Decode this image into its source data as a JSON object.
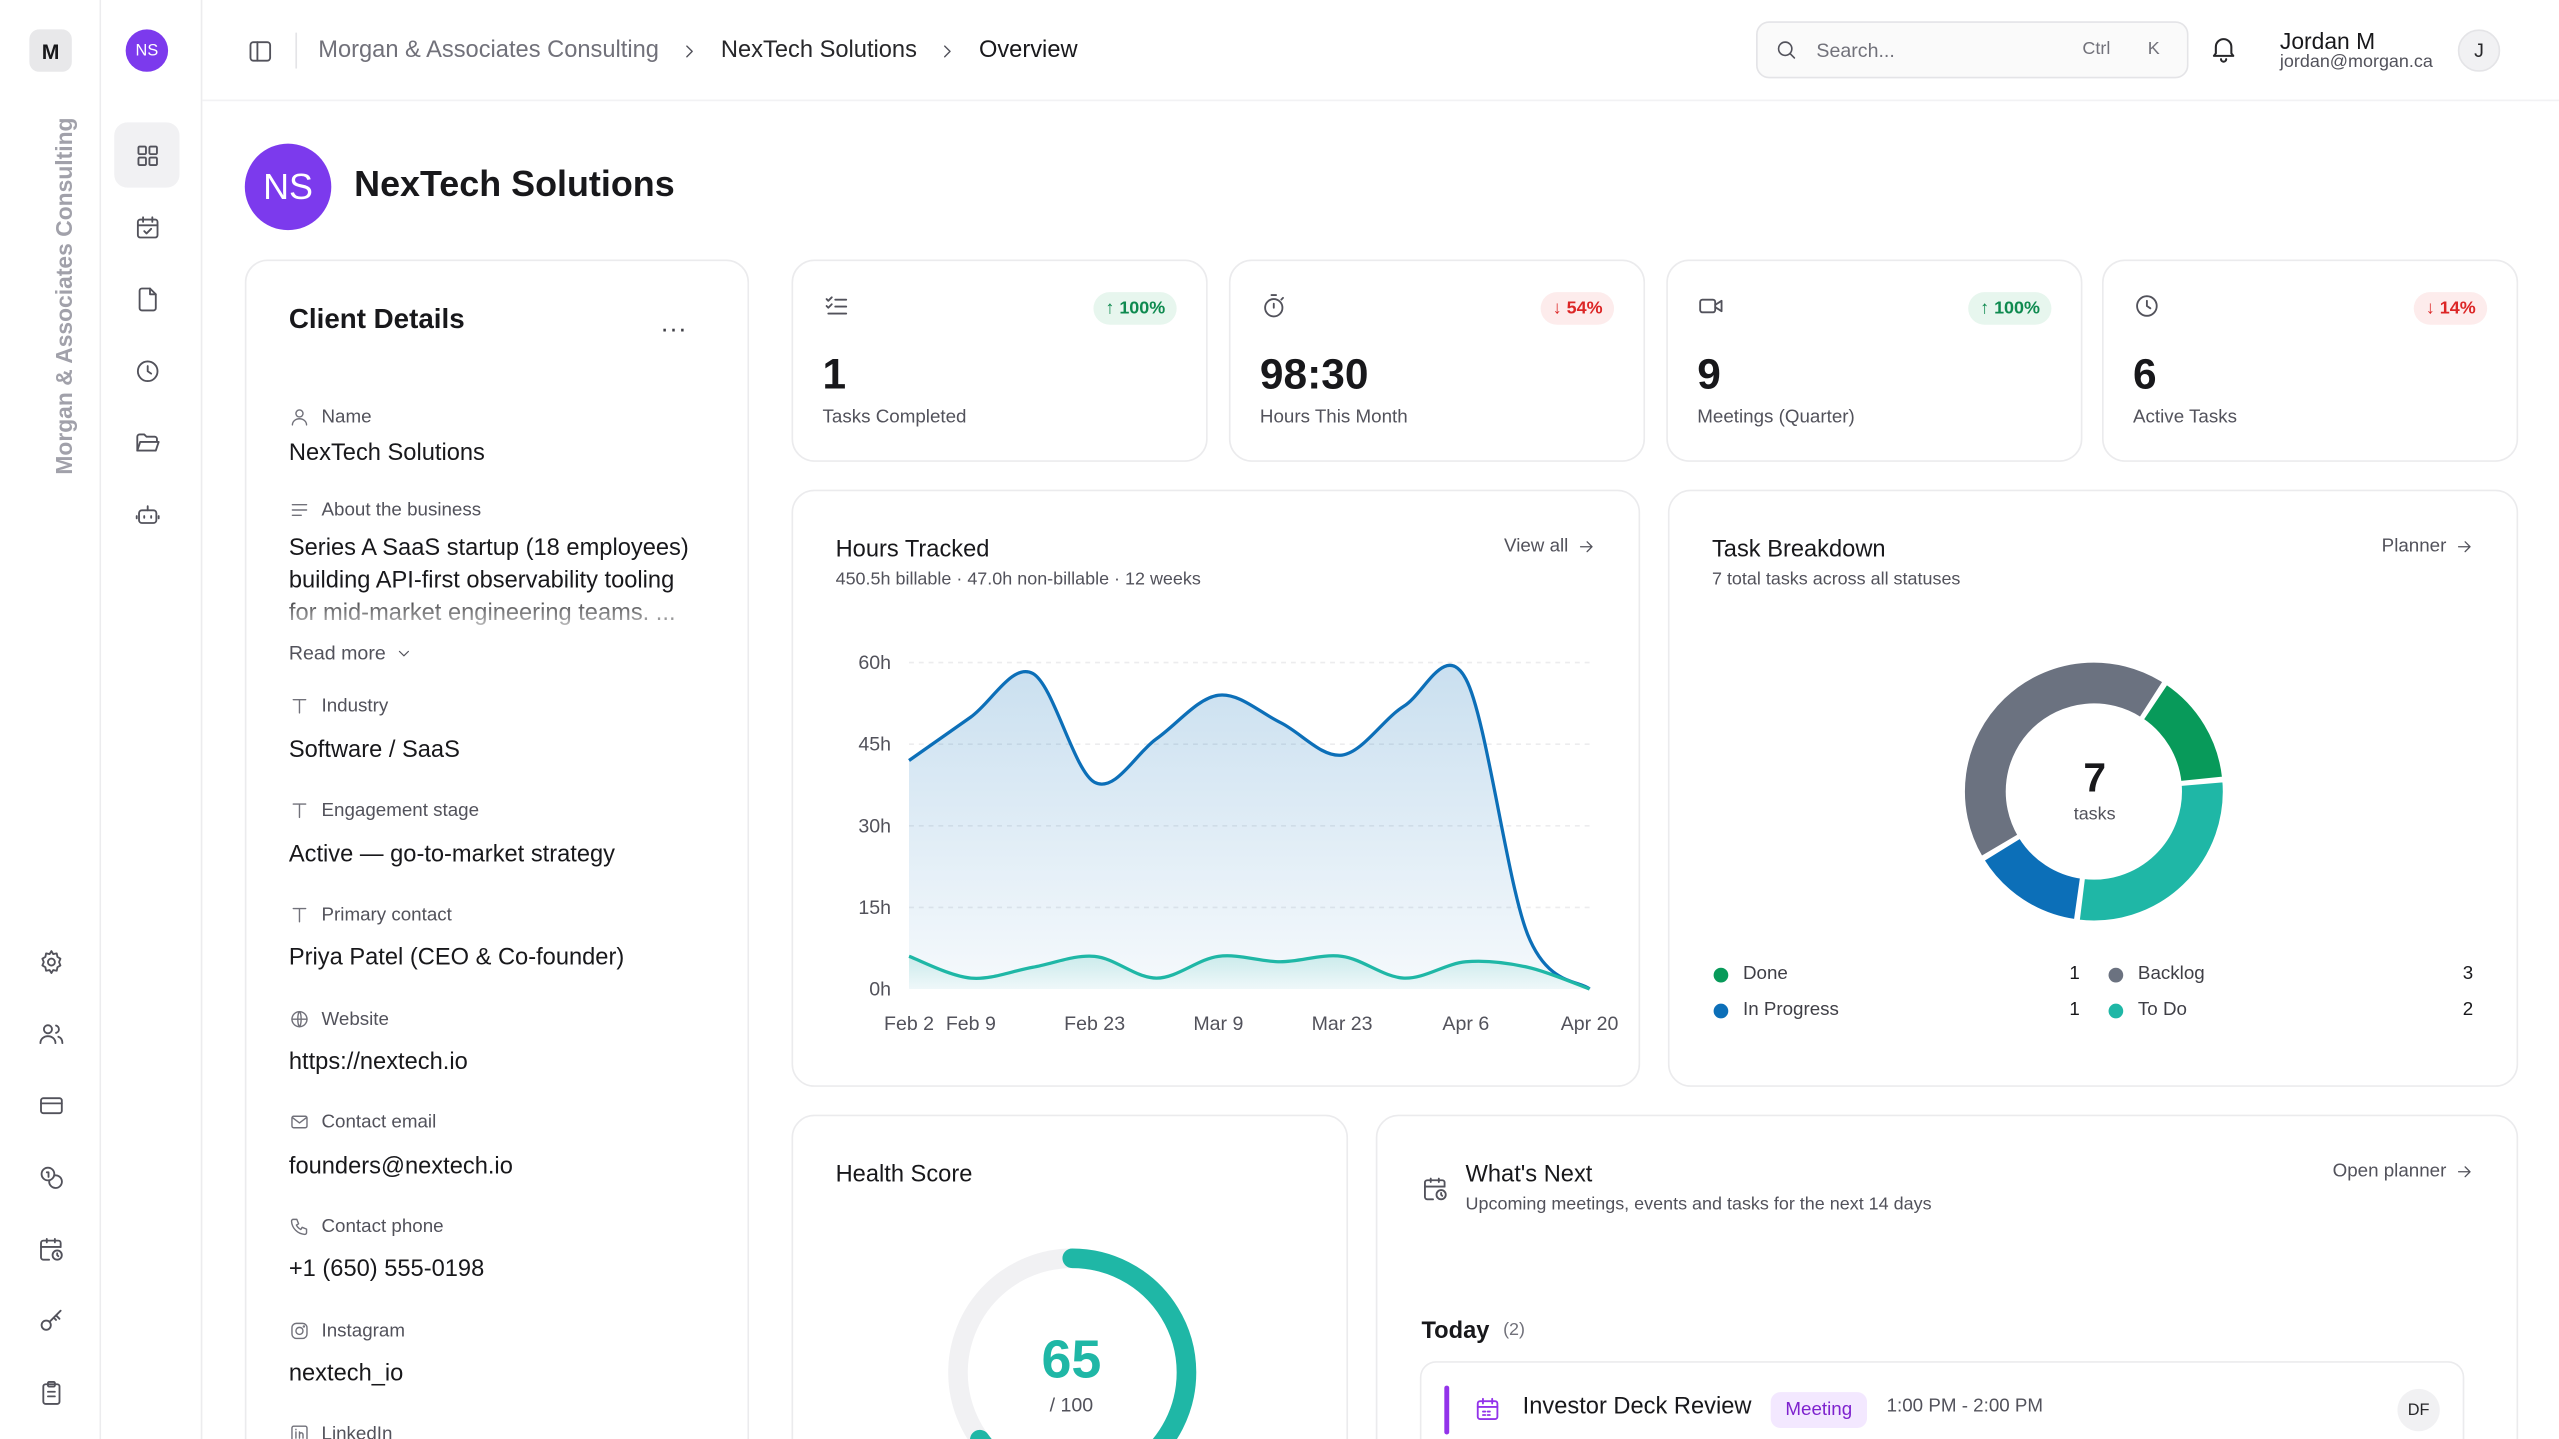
{
  "workspace": {
    "initial": "M",
    "name": "Morgan & Associates Consulting"
  },
  "client": {
    "initials": "NS",
    "name": "NexTech Solutions"
  },
  "topbar": {
    "breadcrumb": [
      "Morgan & Associates Consulting",
      "NexTech Solutions",
      "Overview"
    ],
    "search_placeholder": "Search...",
    "shortcut_ctrl": "Ctrl",
    "shortcut_key": "K",
    "user_name": "Jordan M",
    "user_email": "jordan@morgan.ca",
    "user_initial": "J"
  },
  "sidebar": {
    "nav_icons": [
      "dashboard-icon",
      "calendar-check-icon",
      "file-icon",
      "clock-icon",
      "folder-open-icon",
      "bot-icon"
    ],
    "bottom_icons": [
      "gear-icon",
      "users-icon",
      "credit-card-icon",
      "coins-icon",
      "calendar-clock-icon",
      "key-icon",
      "clipboard-icon"
    ]
  },
  "client_details": {
    "title": "Client Details",
    "more": "...",
    "fields": {
      "name": {
        "label": "Name",
        "value": "NexTech Solutions"
      },
      "about": {
        "label": "About the business",
        "value": "Series A SaaS startup (18 employees) building API-first observability tooling for mid-market engineering teams. ...",
        "read_more": "Read more"
      },
      "industry": {
        "label": "Industry",
        "value": "Software / SaaS"
      },
      "stage": {
        "label": "Engagement stage",
        "value": "Active — go-to-market strategy"
      },
      "contact": {
        "label": "Primary contact",
        "value": "Priya Patel (CEO & Co-founder)"
      },
      "website": {
        "label": "Website",
        "value": "https://nextech.io"
      },
      "email": {
        "label": "Contact email",
        "value": "founders@nextech.io"
      },
      "phone": {
        "label": "Contact phone",
        "value": "+1 (650) 555-0198"
      },
      "instagram": {
        "label": "Instagram",
        "value": "nextech_io"
      },
      "linkedin": {
        "label": "LinkedIn"
      }
    }
  },
  "stats": [
    {
      "value": "1",
      "label": "Tasks Completed",
      "change": "100%",
      "direction": "up",
      "icon": "checklist-icon"
    },
    {
      "value": "98:30",
      "label": "Hours This Month",
      "change": "54%",
      "direction": "down",
      "icon": "stopwatch-icon"
    },
    {
      "value": "9",
      "label": "Meetings (Quarter)",
      "change": "100%",
      "direction": "up",
      "icon": "video-icon"
    },
    {
      "value": "6",
      "label": "Active Tasks",
      "change": "14%",
      "direction": "down",
      "icon": "clock-icon"
    }
  ],
  "hours": {
    "title": "Hours Tracked",
    "subtitle": "450.5h billable · 47.0h non-billable · 12 weeks",
    "link": "View all"
  },
  "tasks": {
    "title": "Task Breakdown",
    "subtitle": "7 total tasks across all statuses",
    "link": "Planner",
    "center_value": "7",
    "center_label": "tasks"
  },
  "health": {
    "title": "Health Score",
    "value": "65",
    "max": "/ 100",
    "score": 65
  },
  "whats_next": {
    "title": "What's Next",
    "subtitle": "Upcoming meetings, events and tasks for the next 14 days",
    "link": "Open planner",
    "today_label": "Today",
    "today_count": "(2)",
    "event": {
      "title": "Investor Deck Review",
      "tag": "Meeting",
      "time": "1:00 PM - 2:00 PM",
      "assignee": "DF"
    }
  },
  "colors": {
    "accent": "#7c3aed",
    "teal": "#1fb7a6",
    "blue": "#0c6fb8",
    "green": "#089a5a",
    "gray": "#6b7280"
  },
  "chart_data": [
    {
      "type": "area",
      "title": "Hours Tracked",
      "x": [
        "Feb 2",
        "Feb 9",
        "Feb 16",
        "Feb 23",
        "Mar 2",
        "Mar 9",
        "Mar 16",
        "Mar 23",
        "Mar 30",
        "Apr 6",
        "Apr 13",
        "Apr 20"
      ],
      "tick_labels": [
        "Feb 2",
        "Feb 9",
        "Feb 23",
        "Mar 9",
        "Mar 23",
        "Apr 6",
        "Apr 20"
      ],
      "ylim": [
        0,
        60
      ],
      "yticks": [
        "0h",
        "15h",
        "30h",
        "45h",
        "60h"
      ],
      "series": [
        {
          "values": [
            42,
            50,
            58,
            38,
            46,
            54,
            49,
            43,
            52,
            57,
            10,
            0
          ],
          "color": "#0c6fb8"
        },
        {
          "values": [
            6,
            2,
            4,
            6,
            2,
            6,
            5,
            6,
            2,
            5,
            4,
            0
          ],
          "color": "#1fb7a6"
        }
      ],
      "grid": true
    },
    {
      "type": "pie",
      "title": "Task Breakdown",
      "legend": "bottom",
      "slices": [
        {
          "label": "Done",
          "value": 1,
          "color": "#089a5a"
        },
        {
          "label": "To Do",
          "value": 2,
          "color": "#1fb7a6"
        },
        {
          "label": "In Progress",
          "value": 1,
          "color": "#0c6fb8"
        },
        {
          "label": "Backlog",
          "value": 3,
          "color": "#6b7280"
        }
      ]
    }
  ]
}
